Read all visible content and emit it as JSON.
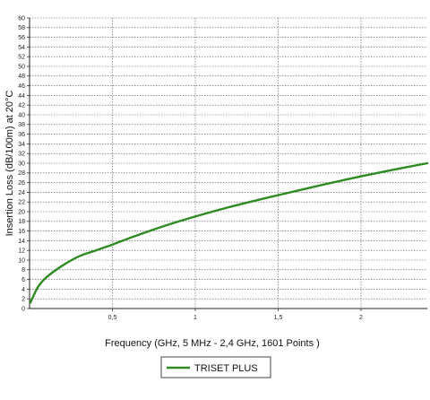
{
  "chart_data": {
    "type": "line",
    "title": "",
    "xlabel": "Frequency (GHz, 5 MHz - 2,4 GHz, 1601 Points )",
    "ylabel": "Insertion Loss (dB/100m) at 20°C",
    "xlim": [
      0,
      2.4
    ],
    "ylim": [
      0,
      60
    ],
    "x_ticks": [
      "0,5",
      "1",
      "1,5",
      "2"
    ],
    "y_ticks": [
      "0",
      "2",
      "4",
      "6",
      "8",
      "10",
      "12",
      "14",
      "16",
      "18",
      "20",
      "22",
      "24",
      "26",
      "28",
      "30",
      "32",
      "34",
      "36",
      "38",
      "40",
      "42",
      "44",
      "46",
      "48",
      "50",
      "52",
      "54",
      "56",
      "58",
      "60"
    ],
    "grid": true,
    "legend_position": "bottom-center",
    "series": [
      {
        "name": "TRISET PLUS",
        "color": "#2e8b22",
        "x": [
          0.005,
          0.05,
          0.1,
          0.2,
          0.3,
          0.4,
          0.5,
          0.6,
          0.8,
          1.0,
          1.2,
          1.4,
          1.6,
          1.8,
          2.0,
          2.2,
          2.4
        ],
        "y": [
          1.2,
          4.4,
          6.4,
          8.9,
          10.8,
          12.0,
          13.2,
          14.5,
          16.9,
          19.0,
          20.9,
          22.6,
          24.2,
          25.8,
          27.3,
          28.7,
          30.0
        ]
      }
    ]
  }
}
